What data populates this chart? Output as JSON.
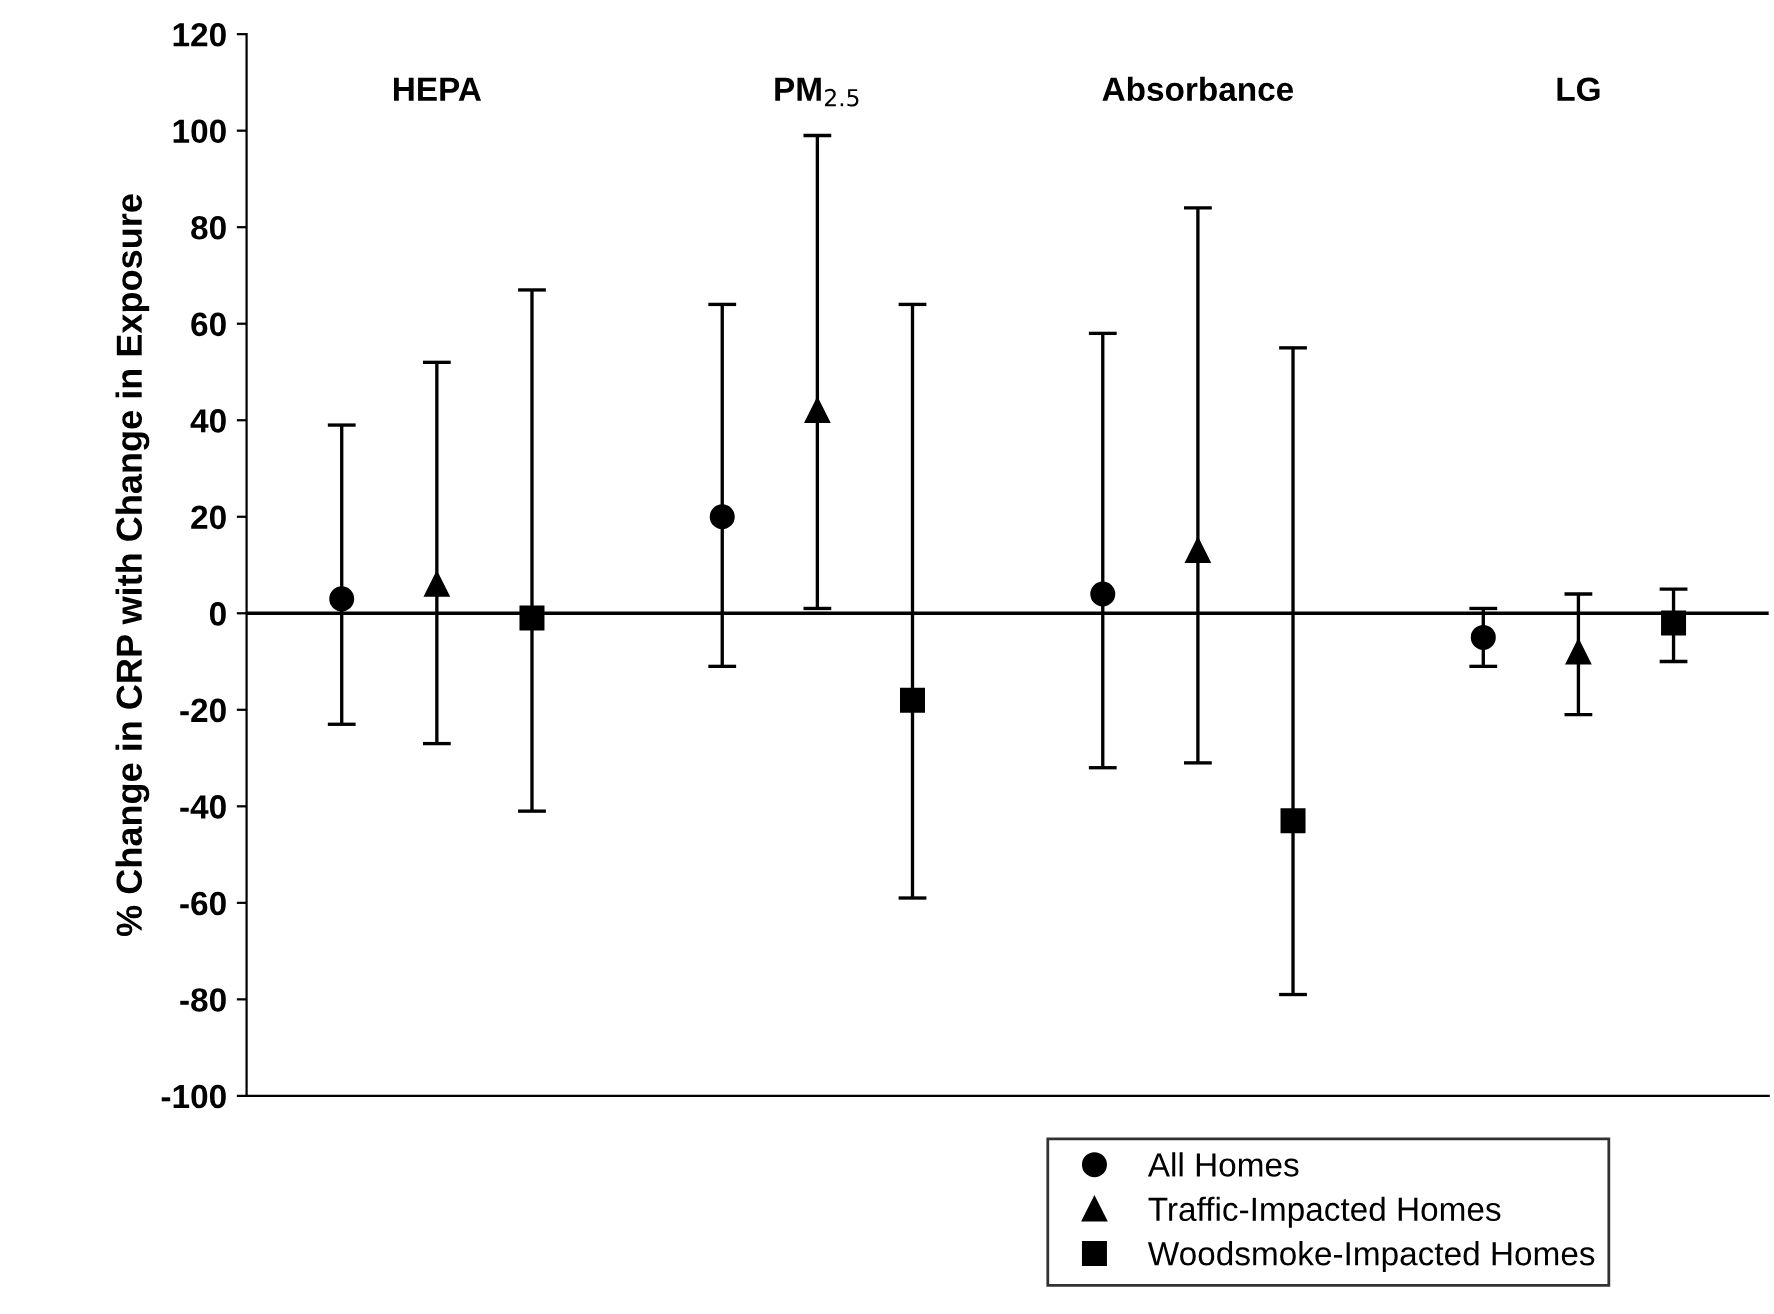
{
  "chart_data": {
    "type": "scatter",
    "ylabel": "% Change in CRP with Change in Exposure",
    "categories": [
      "HEPA",
      "PM$_{2.5}$",
      "Absorbance",
      "LG"
    ],
    "series": [
      {
        "name": "All Homes",
        "color": "#000000",
        "marker": "circle",
        "values": [
          3,
          20,
          4,
          -5
        ],
        "errors": [
          [
            -23,
            39
          ],
          [
            -11,
            64
          ],
          [
            -32,
            58
          ],
          [
            -11,
            1
          ]
        ]
      },
      {
        "name": "Traffic-Impacted Homes",
        "color": "#000000",
        "marker": "triangle",
        "values": [
          6,
          42,
          13,
          -8
        ],
        "errors": [
          [
            -27,
            52
          ],
          [
            1,
            99
          ],
          [
            -31,
            84
          ],
          [
            -21,
            4
          ]
        ]
      },
      {
        "name": "Woodsmoke-Impacted Homes",
        "color": "#000000",
        "marker": "square",
        "values": [
          -1,
          -18,
          -43,
          -2
        ],
        "errors": [
          [
            -41,
            67
          ],
          [
            -59,
            64
          ],
          [
            -79,
            55
          ],
          [
            -10,
            5
          ]
        ]
      }
    ],
    "ylim": [
      -100,
      120
    ],
    "yticks": [
      -100,
      -80,
      -60,
      -40,
      -20,
      0,
      20,
      40,
      60,
      80,
      100,
      120
    ],
    "ref_lines": [
      {
        "axis": "y",
        "value": 0,
        "label": null,
        "color": "#000000"
      }
    ],
    "tick_labels": "y",
    "grid": false,
    "legend": "bottom right"
  }
}
